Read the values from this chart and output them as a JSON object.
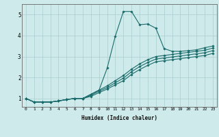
{
  "background_color": "#ceeaea",
  "grid_color": "#aacece",
  "line_color": "#1a6b6b",
  "xlabel": "Humidex (Indice chaleur)",
  "xlim": [
    -0.5,
    23.5
  ],
  "ylim": [
    0.6,
    5.5
  ],
  "yticks": [
    1,
    2,
    3,
    4,
    5
  ],
  "xticks": [
    0,
    1,
    2,
    3,
    4,
    5,
    6,
    7,
    8,
    9,
    10,
    11,
    12,
    13,
    14,
    15,
    16,
    17,
    18,
    19,
    20,
    21,
    22,
    23
  ],
  "lines": [
    [
      0,
      1.0,
      1,
      0.83,
      2,
      0.83,
      3,
      0.83,
      4,
      0.88,
      5,
      0.95,
      6,
      1.0,
      7,
      1.0,
      8,
      1.2,
      9,
      1.4,
      10,
      2.45,
      11,
      3.97,
      12,
      5.15,
      13,
      5.15,
      14,
      4.52,
      15,
      4.55,
      16,
      4.35,
      17,
      3.38,
      18,
      3.25,
      19,
      3.25,
      20,
      3.28,
      21,
      3.32,
      22,
      3.42,
      23,
      3.5
    ],
    [
      0,
      1.0,
      1,
      0.83,
      2,
      0.83,
      3,
      0.83,
      4,
      0.88,
      5,
      0.95,
      6,
      1.0,
      7,
      1.0,
      8,
      1.2,
      9,
      1.4,
      10,
      1.6,
      11,
      1.85,
      12,
      2.1,
      13,
      2.4,
      14,
      2.65,
      15,
      2.85,
      16,
      3.0,
      17,
      3.05,
      18,
      3.1,
      19,
      3.15,
      20,
      3.2,
      21,
      3.25,
      22,
      3.3,
      23,
      3.4
    ],
    [
      0,
      1.0,
      1,
      0.83,
      2,
      0.83,
      3,
      0.83,
      4,
      0.88,
      5,
      0.95,
      6,
      1.0,
      7,
      1.0,
      8,
      1.15,
      9,
      1.35,
      10,
      1.52,
      11,
      1.75,
      12,
      1.97,
      13,
      2.28,
      14,
      2.52,
      15,
      2.72,
      16,
      2.88,
      17,
      2.93,
      18,
      2.98,
      19,
      3.03,
      20,
      3.08,
      21,
      3.13,
      22,
      3.18,
      23,
      3.28
    ],
    [
      0,
      1.0,
      1,
      0.83,
      2,
      0.83,
      3,
      0.83,
      4,
      0.88,
      5,
      0.95,
      6,
      1.0,
      7,
      1.0,
      8,
      1.1,
      9,
      1.28,
      10,
      1.45,
      11,
      1.65,
      12,
      1.85,
      13,
      2.15,
      14,
      2.38,
      15,
      2.58,
      16,
      2.75,
      17,
      2.8,
      18,
      2.85,
      19,
      2.9,
      20,
      2.95,
      21,
      3.0,
      22,
      3.05,
      23,
      3.15
    ]
  ]
}
